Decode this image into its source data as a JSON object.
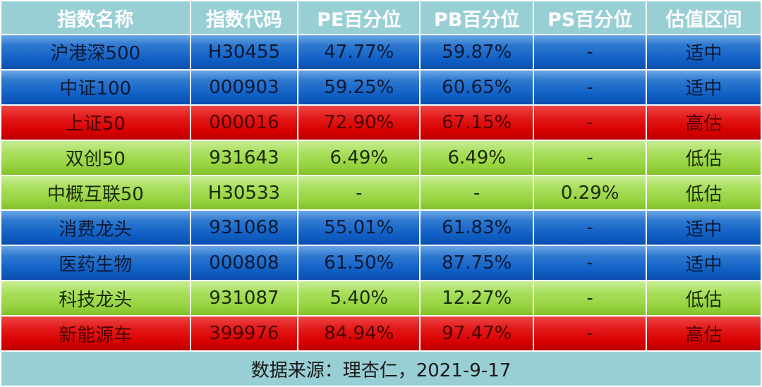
{
  "table": {
    "headers": [
      "指数名称",
      "指数代码",
      "PE百分位",
      "PB百分位",
      "PS百分位",
      "估值区间"
    ],
    "rows": [
      {
        "name": "沪港深500",
        "code": "H30455",
        "pe": "47.77%",
        "pb": "59.87%",
        "ps": "-",
        "valuation": "适中",
        "color": "#1565c8"
      },
      {
        "name": "中证100",
        "code": "000903",
        "pe": "59.25%",
        "pb": "60.65%",
        "ps": "-",
        "valuation": "适中",
        "color": "#1565c8"
      },
      {
        "name": "上证50",
        "code": "000016",
        "pe": "72.90%",
        "pb": "67.15%",
        "ps": "-",
        "valuation": "高估",
        "color": "#d80000"
      },
      {
        "name": "双创50",
        "code": "931643",
        "pe": "6.49%",
        "pb": "6.49%",
        "ps": "-",
        "valuation": "低估",
        "color": "#96d23f"
      },
      {
        "name": "中概互联50",
        "code": "H30533",
        "pe": "-",
        "pb": "-",
        "ps": "0.29%",
        "valuation": "低估",
        "color": "#96d23f"
      },
      {
        "name": "消费龙头",
        "code": "931068",
        "pe": "55.01%",
        "pb": "61.83%",
        "ps": "-",
        "valuation": "适中",
        "color": "#1565c8"
      },
      {
        "name": "医药生物",
        "code": "000808",
        "pe": "61.50%",
        "pb": "87.75%",
        "ps": "-",
        "valuation": "适中",
        "color": "#1565c8"
      },
      {
        "name": "科技龙头",
        "code": "931087",
        "pe": "5.40%",
        "pb": "12.27%",
        "ps": "-",
        "valuation": "低估",
        "color": "#96d23f"
      },
      {
        "name": "新能源车",
        "code": "399976",
        "pe": "84.94%",
        "pb": "97.47%",
        "ps": "-",
        "valuation": "高估",
        "color": "#d80000"
      }
    ],
    "footer": "数据来源：理杏仁，2021-9-17"
  },
  "colors": {
    "header_bg": "#98cfd4",
    "fair": "#1565c8",
    "high": "#d80000",
    "low": "#96d23f"
  }
}
